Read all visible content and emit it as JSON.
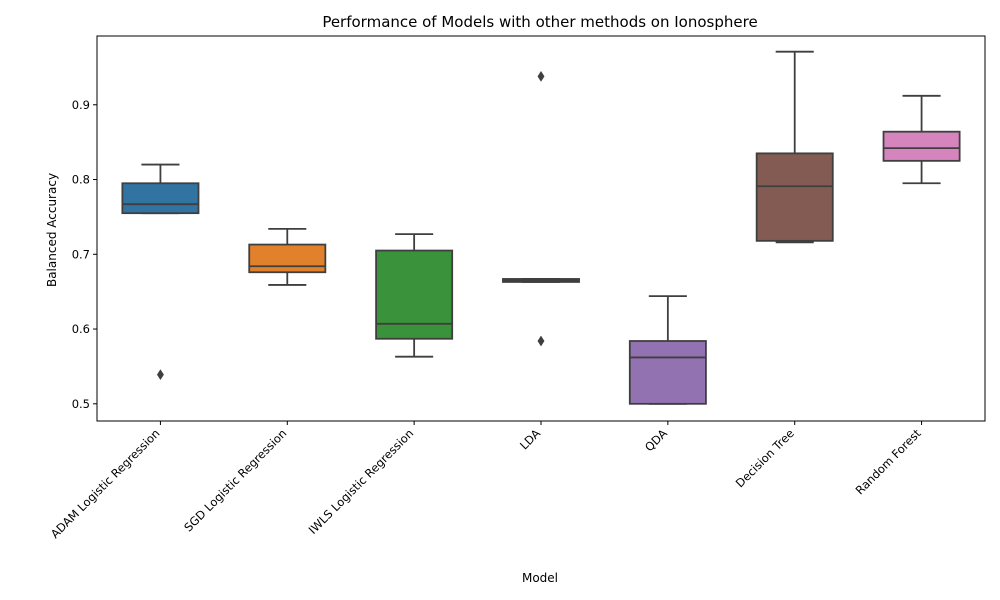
{
  "chart_data": {
    "type": "box",
    "title": "Performance of Models with other methods on Ionosphere",
    "xlabel": "Model",
    "ylabel": "Balanced Accuracy",
    "ylim": [
      0.477,
      0.992
    ],
    "yticks": [
      0.5,
      0.6,
      0.7,
      0.8,
      0.9
    ],
    "ytick_labels": [
      "0.5",
      "0.6",
      "0.7",
      "0.8",
      "0.9"
    ],
    "grid": false,
    "categories": [
      "ADAM Logistic Regression",
      "SGD Logistic Regression",
      "IWLS Logistic Regression",
      "LDA",
      "QDA",
      "Decision Tree",
      "Random Forest"
    ],
    "boxes": [
      {
        "name": "ADAM Logistic Regression",
        "color": "#3274a1",
        "whislo": 0.755,
        "q1": 0.755,
        "med": 0.767,
        "q3": 0.795,
        "whishi": 0.82,
        "fliers": [
          0.539
        ]
      },
      {
        "name": "SGD Logistic Regression",
        "color": "#e1812c",
        "whislo": 0.659,
        "q1": 0.676,
        "med": 0.684,
        "q3": 0.713,
        "whishi": 0.734,
        "fliers": []
      },
      {
        "name": "IWLS Logistic Regression",
        "color": "#3a923a",
        "whislo": 0.563,
        "q1": 0.587,
        "med": 0.607,
        "q3": 0.705,
        "whishi": 0.727,
        "fliers": []
      },
      {
        "name": "LDA",
        "color": "#c03d3e",
        "whislo": 0.663,
        "q1": 0.663,
        "med": 0.665,
        "q3": 0.667,
        "whishi": 0.667,
        "fliers": [
          0.938,
          0.584
        ]
      },
      {
        "name": "QDA",
        "color": "#9372b2",
        "whislo": 0.5,
        "q1": 0.5,
        "med": 0.562,
        "q3": 0.584,
        "whishi": 0.644,
        "fliers": []
      },
      {
        "name": "Decision Tree",
        "color": "#845b53",
        "whislo": 0.716,
        "q1": 0.718,
        "med": 0.791,
        "q3": 0.835,
        "whishi": 0.971,
        "fliers": []
      },
      {
        "name": "Random Forest",
        "color": "#d684bd",
        "whislo": 0.795,
        "q1": 0.825,
        "med": 0.842,
        "q3": 0.864,
        "whishi": 0.912,
        "fliers": []
      }
    ]
  }
}
